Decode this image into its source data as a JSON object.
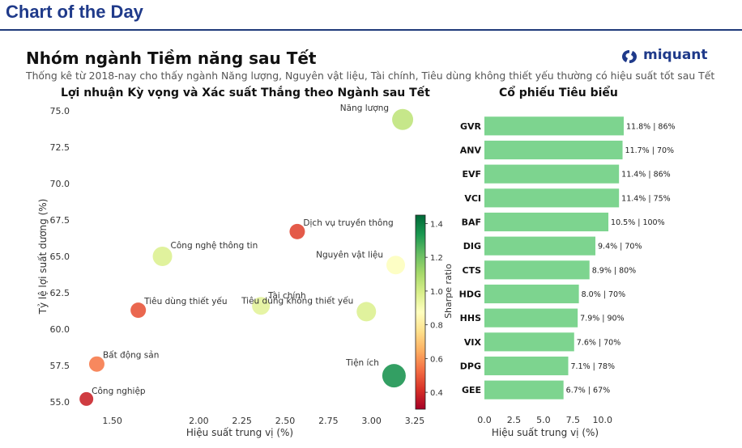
{
  "header": {
    "title": "Chart of the Day"
  },
  "brand": {
    "name": "miquant",
    "icon": "miquant-logo-icon",
    "color": "#1f3a8a"
  },
  "page": {
    "title": "Nhóm ngành Tiềm năng sau Tết",
    "subtitle": "Thống kê từ 2018-nay cho thấy ngành Năng lượng, Nguyên vật liệu, Tài chính, Tiêu dùng không thiết yếu thường có hiệu suất tốt sau Tết"
  },
  "chart_data": [
    {
      "type": "scatter",
      "title": "Lợi nhuận Kỳ vọng và Xác suất Thắng theo Ngành sau Tết",
      "xlabel": "Hiệu suất trung vị (%)",
      "ylabel": "Tỷ lệ lợi suất dương (%)",
      "xlim": [
        1.3,
        3.25
      ],
      "ylim": [
        54.5,
        75.5
      ],
      "xticks": [
        "1.50",
        "2.00",
        "2.25",
        "2.50",
        "2.75",
        "3.00",
        "3.25"
      ],
      "xtick_values": [
        1.5,
        2.0,
        2.25,
        2.5,
        2.75,
        3.0,
        3.25
      ],
      "yticks": [
        "55.0",
        "57.5",
        "60.0",
        "62.5",
        "65.0",
        "67.5",
        "70.0",
        "72.5",
        "75.0"
      ],
      "ytick_values": [
        55.0,
        57.5,
        60.0,
        62.5,
        65.0,
        67.5,
        70.0,
        72.5,
        75.0
      ],
      "colorbar": {
        "label": "Sharpe ratio",
        "range": [
          0.3,
          1.45
        ],
        "ticks": [
          "0.4",
          "0.6",
          "0.8",
          "1.0",
          "1.2",
          "1.4"
        ],
        "tick_values": [
          0.4,
          0.6,
          0.8,
          1.0,
          1.2,
          1.4
        ],
        "colors": [
          "#a50026",
          "#d73027",
          "#f46d43",
          "#fdae61",
          "#fee08b",
          "#ffffbf",
          "#d9ef8b",
          "#a6d96a",
          "#66bd63",
          "#1a9850",
          "#006837"
        ]
      },
      "points": [
        {
          "label": "Năng lượng",
          "x": 3.18,
          "y": 74.4,
          "sharpe": 1.05,
          "size": 1.3
        },
        {
          "label": "Dịch vụ truyền thông",
          "x": 2.57,
          "y": 66.7,
          "sharpe": 0.45,
          "size": 0.95
        },
        {
          "label": "Công nghệ thông tin",
          "x": 1.79,
          "y": 65.0,
          "sharpe": 0.98,
          "size": 1.2
        },
        {
          "label": "Nguyên vật liệu",
          "x": 3.14,
          "y": 64.4,
          "sharpe": 0.88,
          "size": 1.15
        },
        {
          "label": "Tài chính",
          "x": 2.36,
          "y": 61.6,
          "sharpe": 0.96,
          "size": 1.1
        },
        {
          "label": "Tiêu dùng không thiết yếu",
          "x": 2.97,
          "y": 61.2,
          "sharpe": 0.98,
          "size": 1.2
        },
        {
          "label": "Tiêu dùng thiết yếu",
          "x": 1.65,
          "y": 61.3,
          "sharpe": 0.48,
          "size": 0.95
        },
        {
          "label": "Bất động sản",
          "x": 1.41,
          "y": 57.6,
          "sharpe": 0.55,
          "size": 0.95
        },
        {
          "label": "Tiện ích",
          "x": 3.13,
          "y": 56.8,
          "sharpe": 1.35,
          "size": 1.45
        },
        {
          "label": "Công nghiệp",
          "x": 1.35,
          "y": 55.2,
          "sharpe": 0.38,
          "size": 0.85
        }
      ]
    },
    {
      "type": "bar",
      "orientation": "horizontal",
      "title": "Cổ phiếu Tiêu biểu",
      "xlabel": "Hiệu suất trung vị (%)",
      "xlim": [
        0,
        11.8
      ],
      "xticks": [
        "0.0",
        "2.5",
        "5.0",
        "7.5",
        "10.0"
      ],
      "xtick_values": [
        0,
        2.5,
        5.0,
        7.5,
        10.0
      ],
      "bar_color": "#7dd48f",
      "categories": [
        "GVR",
        "ANV",
        "EVF",
        "VCI",
        "BAF",
        "DIG",
        "CTS",
        "HDG",
        "HHS",
        "VIX",
        "DPG",
        "GEE"
      ],
      "values": [
        11.8,
        11.7,
        11.4,
        11.4,
        10.5,
        9.4,
        8.9,
        8.0,
        7.9,
        7.6,
        7.1,
        6.7
      ],
      "data_labels": [
        "11.8% | 86%",
        "11.7% | 70%",
        "11.4% | 86%",
        "11.4% | 75%",
        "10.5% | 100%",
        "9.4% | 70%",
        "8.9% | 80%",
        "8.0% | 70%",
        "7.9% | 90%",
        "7.6% | 70%",
        "7.1% | 78%",
        "6.7% | 67%"
      ]
    }
  ]
}
